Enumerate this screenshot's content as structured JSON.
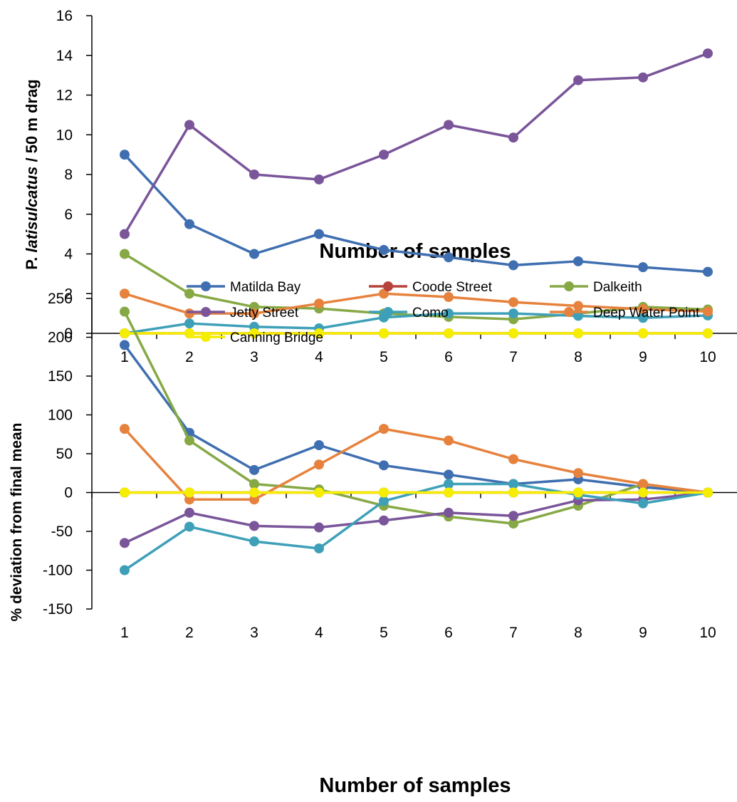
{
  "colors": {
    "matilda_bay": "#3f6fb0",
    "coode_street": "#b7423c",
    "dalkeith": "#86a945",
    "jetty_street": "#7a559a",
    "como": "#3ea0b8",
    "deep_water_point": "#e6823d",
    "canning_bridge": "#f5ee00"
  },
  "chart_data": [
    {
      "type": "line",
      "ylabel_prefix": "P.",
      "ylabel_italic": "latisulcatus",
      "ylabel_suffix": "/ 50 m drag",
      "xlabel": "Number of samples",
      "x": [
        1,
        2,
        3,
        4,
        5,
        6,
        7,
        8,
        9,
        10
      ],
      "ylim": [
        0,
        16
      ],
      "yticks": [
        0,
        2,
        4,
        6,
        8,
        10,
        12,
        14,
        16
      ],
      "series": [
        {
          "name": "Matilda Bay",
          "color_key": "matilda_bay",
          "values": [
            9.0,
            5.5,
            4.0,
            5.0,
            4.2,
            3.83,
            3.43,
            3.63,
            3.33,
            3.1
          ]
        },
        {
          "name": "Coode Street",
          "color_key": "coode_street",
          "values": [
            0,
            0,
            0,
            0,
            0,
            0,
            0,
            0,
            0,
            0
          ]
        },
        {
          "name": "Dalkeith",
          "color_key": "dalkeith",
          "values": [
            4.0,
            2.0,
            1.33,
            1.25,
            1.0,
            0.83,
            0.71,
            1.0,
            1.33,
            1.2
          ]
        },
        {
          "name": "Jetty Street",
          "color_key": "jetty_street",
          "values": [
            5.0,
            10.5,
            8.0,
            7.75,
            9.0,
            10.5,
            9.86,
            12.75,
            12.89,
            14.1
          ]
        },
        {
          "name": "Como",
          "color_key": "como",
          "values": [
            0.0,
            0.5,
            0.33,
            0.25,
            0.8,
            1.0,
            1.0,
            0.88,
            0.78,
            0.9
          ]
        },
        {
          "name": "Deep Water Point",
          "color_key": "deep_water_point",
          "values": [
            2.0,
            1.0,
            1.0,
            1.5,
            2.0,
            1.83,
            1.57,
            1.38,
            1.22,
            1.1
          ]
        },
        {
          "name": "Canning Bridge",
          "color_key": "canning_bridge",
          "values": [
            0,
            0,
            0,
            0,
            0,
            0,
            0,
            0,
            0,
            0
          ]
        }
      ]
    },
    {
      "type": "line",
      "ylabel": "% deviation from final mean",
      "xlabel": "Number of samples",
      "x": [
        1,
        2,
        3,
        4,
        5,
        6,
        7,
        8,
        9,
        10
      ],
      "ylim": [
        -150,
        250
      ],
      "yticks": [
        -150,
        -100,
        -50,
        0,
        50,
        100,
        150,
        200,
        250
      ],
      "legend": {
        "placement": "top",
        "entries": [
          "Matilda Bay",
          "Coode Street",
          "Dalkeith",
          "Jetty Street",
          "Como",
          "Deep Water Point",
          "Canning Bridge"
        ]
      },
      "series": [
        {
          "name": "Matilda Bay",
          "color_key": "matilda_bay",
          "values": [
            190,
            77,
            29,
            61,
            35,
            23,
            11,
            17,
            7,
            0
          ]
        },
        {
          "name": "Coode Street",
          "color_key": "coode_street",
          "values": [
            0,
            0,
            0,
            0,
            0,
            0,
            0,
            0,
            0,
            0
          ]
        },
        {
          "name": "Dalkeith",
          "color_key": "dalkeith",
          "values": [
            233,
            67,
            11,
            4,
            -17,
            -31,
            -40,
            -17,
            11,
            0
          ]
        },
        {
          "name": "Jetty Street",
          "color_key": "jetty_street",
          "values": [
            -65,
            -26,
            -43,
            -45,
            -36,
            -26,
            -30,
            -10,
            -9,
            0
          ]
        },
        {
          "name": "Como",
          "color_key": "como",
          "values": [
            -100,
            -44,
            -63,
            -72,
            -11,
            11,
            11,
            -3,
            -14,
            0
          ]
        },
        {
          "name": "Deep Water Point",
          "color_key": "deep_water_point",
          "values": [
            82,
            -9,
            -9,
            36,
            82,
            67,
            43,
            25,
            11,
            0
          ]
        },
        {
          "name": "Canning Bridge",
          "color_key": "canning_bridge",
          "values": [
            0,
            0,
            0,
            0,
            0,
            0,
            0,
            0,
            0,
            0
          ]
        }
      ]
    }
  ]
}
